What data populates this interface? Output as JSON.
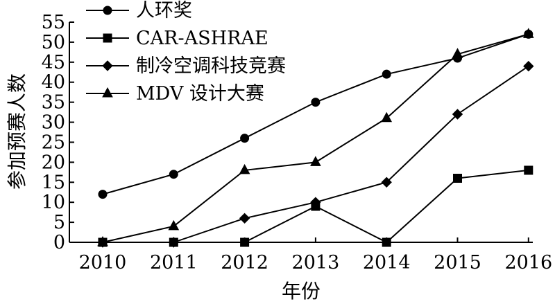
{
  "chart_data": {
    "type": "line",
    "title": "",
    "xlabel": "年份",
    "ylabel": "参加预赛人数",
    "categories": [
      "2010",
      "2011",
      "2012",
      "2013",
      "2014",
      "2015",
      "2016"
    ],
    "ylim": [
      0,
      55
    ],
    "yticks": [
      "0",
      "5",
      "10",
      "15",
      "20",
      "25",
      "30",
      "35",
      "40",
      "45",
      "50",
      "55"
    ],
    "grid": false,
    "legend_position": "top-left",
    "series": [
      {
        "name": "人环奖",
        "marker": "circle",
        "values": [
          12,
          17,
          26,
          35,
          42,
          46,
          52
        ]
      },
      {
        "name": "CAR-ASHRAE",
        "marker": "square",
        "values": [
          0,
          0,
          0,
          9,
          0,
          16,
          18
        ]
      },
      {
        "name": "制冷空调科技竞赛",
        "marker": "diamond",
        "values": [
          0,
          0,
          6,
          10,
          15,
          32,
          44
        ]
      },
      {
        "name": "MDV 设计大赛",
        "marker": "triangle",
        "values": [
          0,
          4,
          18,
          20,
          31,
          47,
          52
        ]
      }
    ]
  }
}
